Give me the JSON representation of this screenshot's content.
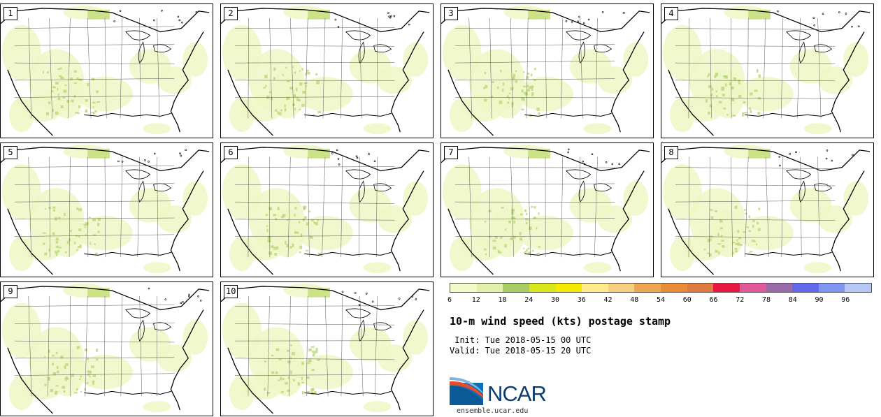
{
  "panels": [
    "1",
    "2",
    "3",
    "4",
    "5",
    "6",
    "7",
    "8",
    "9",
    "10"
  ],
  "legend": {
    "colors": [
      "#f3f9c7",
      "#e2f1a8",
      "#a9cc64",
      "#d9e619",
      "#f5ea00",
      "#ffe98a",
      "#f6cf82",
      "#eda453",
      "#e98c3a",
      "#dd7b40",
      "#e8173f",
      "#e05a9b",
      "#9b6aa8",
      "#6168ec",
      "#7f97f2",
      "#b6c7f6"
    ],
    "ticks": [
      "6",
      "12",
      "18",
      "24",
      "30",
      "36",
      "42",
      "48",
      "54",
      "60",
      "66",
      "72",
      "78",
      "84",
      "90",
      "96"
    ]
  },
  "title": "10-m wind speed (kts) postage stamp",
  "init": " Init: Tue 2018-05-15 00 UTC",
  "valid": "Valid: Tue 2018-05-15 20 UTC",
  "logo": {
    "text": "NCAR",
    "url": "ensemble.ucar.edu"
  }
}
